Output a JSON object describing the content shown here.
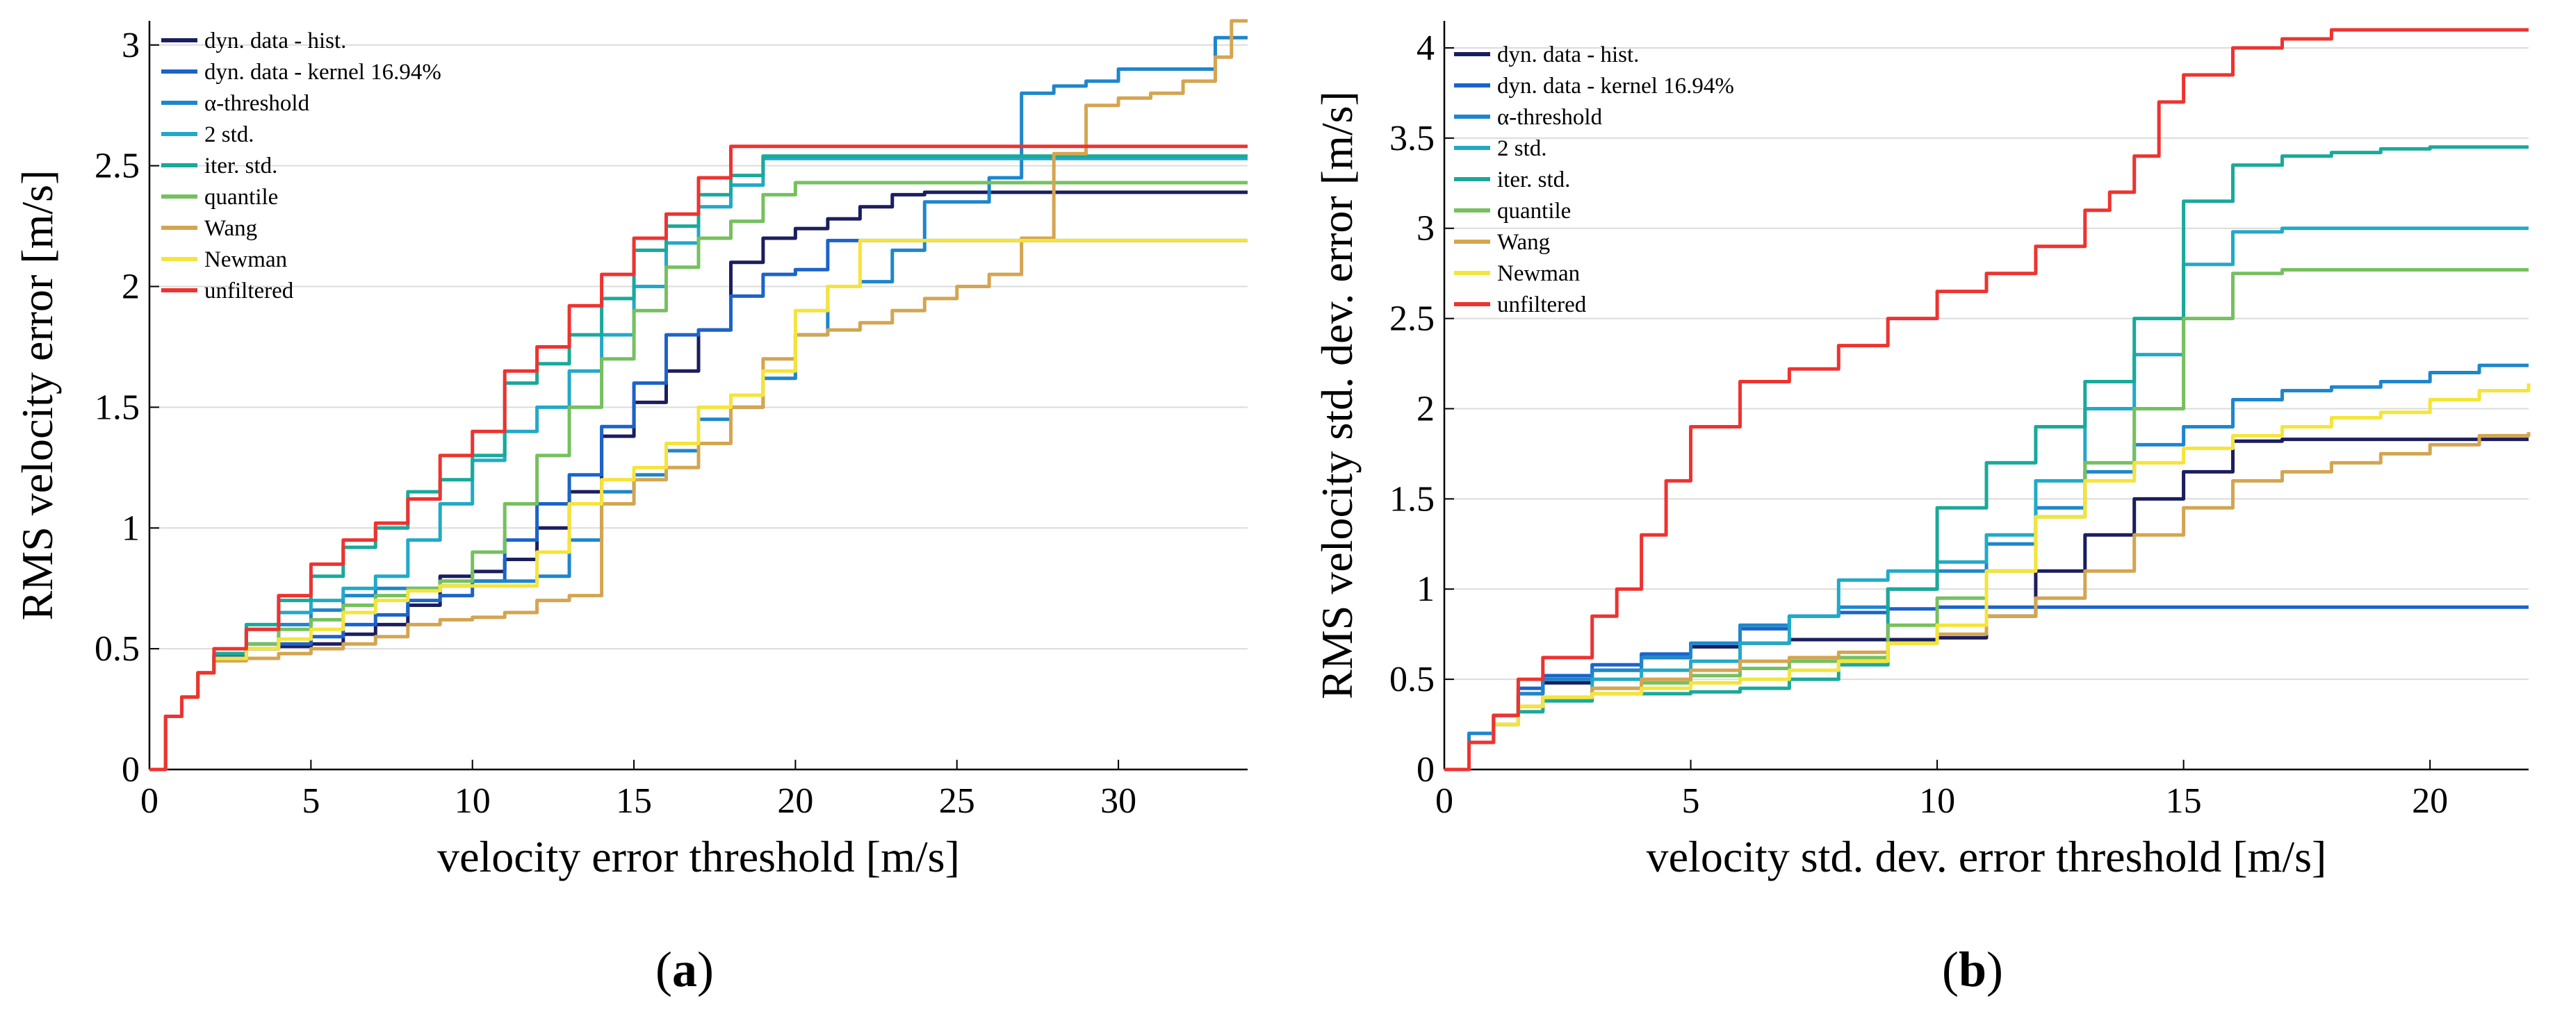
{
  "chart_data": [
    {
      "type": "line",
      "panel_label": "(a)",
      "panel_letter": "a",
      "xlabel": "velocity error threshold [m/s]",
      "ylabel": "RMS velocity error [m/s]",
      "xlim": [
        0,
        34
      ],
      "ylim": [
        0,
        3.1
      ],
      "xticks": [
        0,
        5,
        10,
        15,
        20,
        25,
        30
      ],
      "yticks": [
        0,
        0.5,
        1,
        1.5,
        2,
        2.5,
        3
      ],
      "grid": "horizontal",
      "legend_position": "top-left",
      "series": [
        {
          "name": "dyn. data - hist.",
          "color": "#1b1e5e",
          "x": [
            0,
            0.5,
            1,
            1.5,
            2,
            3,
            4,
            5,
            6,
            7,
            8,
            9,
            10,
            11,
            12,
            13,
            14,
            15,
            16,
            17,
            18,
            19,
            20,
            21,
            22,
            23,
            24,
            25,
            34
          ],
          "y": [
            0,
            0.22,
            0.3,
            0.4,
            0.47,
            0.5,
            0.51,
            0.52,
            0.56,
            0.6,
            0.68,
            0.8,
            0.82,
            0.87,
            1.0,
            1.15,
            1.38,
            1.52,
            1.65,
            1.82,
            2.1,
            2.2,
            2.24,
            2.28,
            2.33,
            2.38,
            2.39,
            2.39,
            2.39
          ]
        },
        {
          "name": "dyn. data - kernel 16.94%",
          "color": "#1c63c9",
          "x": [
            0,
            0.5,
            1,
            1.5,
            2,
            3,
            4,
            5,
            6,
            7,
            8,
            9,
            10,
            11,
            12,
            13,
            14,
            15,
            16,
            17,
            18,
            19,
            20,
            21,
            22,
            34
          ],
          "y": [
            0,
            0.22,
            0.3,
            0.4,
            0.47,
            0.5,
            0.52,
            0.55,
            0.6,
            0.64,
            0.7,
            0.72,
            0.78,
            0.95,
            1.1,
            1.22,
            1.42,
            1.6,
            1.8,
            1.82,
            1.96,
            2.05,
            2.07,
            2.19,
            2.19,
            2.19
          ]
        },
        {
          "name": "α-threshold",
          "color": "#1e86cc",
          "x": [
            0,
            0.5,
            1,
            1.5,
            2,
            3,
            4,
            5,
            6,
            7,
            8,
            9,
            10,
            11,
            12,
            13,
            14,
            15,
            16,
            17,
            18,
            19,
            20,
            21,
            22,
            23,
            24,
            25,
            26,
            27,
            28,
            29,
            30,
            31,
            32,
            33,
            34
          ],
          "y": [
            0,
            0.22,
            0.3,
            0.4,
            0.46,
            0.52,
            0.6,
            0.66,
            0.72,
            0.75,
            0.75,
            0.76,
            0.78,
            0.78,
            0.8,
            0.95,
            1.15,
            1.22,
            1.32,
            1.45,
            1.5,
            1.62,
            1.8,
            2.0,
            2.02,
            2.15,
            2.35,
            2.35,
            2.45,
            2.8,
            2.83,
            2.85,
            2.9,
            2.9,
            2.9,
            3.03,
            3.03
          ]
        },
        {
          "name": "2 std.",
          "color": "#22a9c8",
          "x": [
            0,
            0.5,
            1,
            1.5,
            2,
            3,
            4,
            5,
            6,
            7,
            8,
            9,
            10,
            11,
            12,
            13,
            14,
            15,
            16,
            17,
            18,
            19,
            34
          ],
          "y": [
            0,
            0.22,
            0.3,
            0.4,
            0.48,
            0.58,
            0.65,
            0.7,
            0.75,
            0.8,
            0.95,
            1.1,
            1.28,
            1.4,
            1.5,
            1.65,
            1.8,
            2.0,
            2.18,
            2.33,
            2.42,
            2.53,
            2.53
          ]
        },
        {
          "name": "iter. std.",
          "color": "#1aa99a",
          "x": [
            0,
            0.5,
            1,
            1.5,
            2,
            3,
            4,
            5,
            6,
            7,
            8,
            9,
            10,
            11,
            12,
            13,
            14,
            15,
            16,
            17,
            18,
            19,
            34
          ],
          "y": [
            0,
            0.22,
            0.3,
            0.4,
            0.48,
            0.6,
            0.7,
            0.8,
            0.92,
            1.0,
            1.15,
            1.2,
            1.3,
            1.6,
            1.68,
            1.8,
            1.95,
            2.15,
            2.25,
            2.38,
            2.46,
            2.54,
            2.54
          ]
        },
        {
          "name": "quantile",
          "color": "#76c05f",
          "x": [
            0,
            0.5,
            1,
            1.5,
            2,
            3,
            4,
            5,
            6,
            7,
            8,
            9,
            10,
            11,
            12,
            13,
            14,
            15,
            16,
            17,
            18,
            19,
            20,
            34
          ],
          "y": [
            0,
            0.22,
            0.3,
            0.4,
            0.46,
            0.52,
            0.58,
            0.62,
            0.68,
            0.72,
            0.75,
            0.78,
            0.9,
            1.1,
            1.3,
            1.5,
            1.7,
            1.9,
            2.08,
            2.2,
            2.27,
            2.38,
            2.43,
            2.43
          ]
        },
        {
          "name": "Wang",
          "color": "#d4a550",
          "x": [
            0,
            0.5,
            1,
            1.5,
            2,
            3,
            4,
            5,
            6,
            7,
            8,
            9,
            10,
            11,
            12,
            13,
            14,
            15,
            16,
            17,
            18,
            19,
            20,
            21,
            22,
            23,
            24,
            25,
            26,
            27,
            28,
            29,
            30,
            31,
            32,
            33,
            33.5,
            34
          ],
          "y": [
            0,
            0.22,
            0.3,
            0.4,
            0.45,
            0.46,
            0.48,
            0.5,
            0.52,
            0.55,
            0.6,
            0.62,
            0.63,
            0.65,
            0.7,
            0.72,
            1.1,
            1.2,
            1.25,
            1.35,
            1.5,
            1.7,
            1.8,
            1.82,
            1.85,
            1.9,
            1.95,
            2.0,
            2.05,
            2.2,
            2.55,
            2.75,
            2.78,
            2.8,
            2.85,
            2.95,
            3.1,
            3.1
          ]
        },
        {
          "name": "Newman",
          "color": "#f5e43a",
          "x": [
            0,
            0.5,
            1,
            1.5,
            2,
            3,
            4,
            5,
            6,
            7,
            8,
            9,
            10,
            11,
            12,
            13,
            14,
            15,
            16,
            17,
            18,
            19,
            20,
            21,
            22,
            34
          ],
          "y": [
            0,
            0.22,
            0.3,
            0.4,
            0.46,
            0.5,
            0.54,
            0.58,
            0.65,
            0.7,
            0.74,
            0.76,
            0.76,
            0.76,
            0.9,
            1.1,
            1.2,
            1.25,
            1.35,
            1.5,
            1.55,
            1.65,
            1.9,
            2.0,
            2.19,
            2.19
          ]
        },
        {
          "name": "unfiltered",
          "color": "#ee3330",
          "x": [
            0,
            0.5,
            1,
            1.5,
            2,
            3,
            4,
            5,
            6,
            7,
            8,
            9,
            10,
            11,
            12,
            13,
            14,
            15,
            16,
            17,
            18,
            34
          ],
          "y": [
            0,
            0.22,
            0.3,
            0.4,
            0.5,
            0.58,
            0.72,
            0.85,
            0.95,
            1.02,
            1.12,
            1.3,
            1.4,
            1.65,
            1.75,
            1.92,
            2.05,
            2.2,
            2.3,
            2.45,
            2.58,
            2.58
          ]
        }
      ]
    },
    {
      "type": "line",
      "panel_label": "(b)",
      "panel_letter": "b",
      "xlabel": "velocity std. dev. error threshold [m/s]",
      "ylabel": "RMS velocity std. dev. error [m/s]",
      "xlim": [
        0,
        22
      ],
      "ylim": [
        0,
        4.15
      ],
      "xticks": [
        0,
        5,
        10,
        15,
        20
      ],
      "yticks": [
        0,
        0.5,
        1,
        1.5,
        2,
        2.5,
        3,
        3.5,
        4
      ],
      "grid": "horizontal",
      "legend_position": "top-left",
      "series": [
        {
          "name": "dyn. data - hist.",
          "color": "#1b1e5e",
          "x": [
            0,
            0.5,
            1,
            1.5,
            2,
            3,
            4,
            5,
            6,
            7,
            8,
            9,
            10,
            11,
            12,
            13,
            14,
            15,
            16,
            17,
            18,
            19,
            20,
            21,
            22
          ],
          "y": [
            0,
            0.15,
            0.3,
            0.42,
            0.48,
            0.55,
            0.62,
            0.68,
            0.7,
            0.72,
            0.72,
            0.72,
            0.73,
            0.85,
            1.1,
            1.3,
            1.5,
            1.65,
            1.82,
            1.83,
            1.83,
            1.83,
            1.83,
            1.83,
            1.83
          ]
        },
        {
          "name": "dyn. data - kernel 16.94%",
          "color": "#1c63c9",
          "x": [
            0,
            0.5,
            1,
            1.5,
            2,
            3,
            4,
            5,
            6,
            7,
            8,
            9,
            10,
            11,
            12,
            13,
            14,
            15,
            16,
            17,
            18,
            19,
            20,
            21,
            22
          ],
          "y": [
            0,
            0.2,
            0.3,
            0.45,
            0.52,
            0.58,
            0.64,
            0.7,
            0.78,
            0.85,
            0.87,
            0.89,
            0.9,
            0.9,
            0.9,
            0.9,
            0.9,
            0.9,
            0.9,
            0.9,
            0.9,
            0.9,
            0.9,
            0.9,
            0.9
          ]
        },
        {
          "name": "α-threshold",
          "color": "#1e86cc",
          "x": [
            0,
            0.5,
            1,
            1.5,
            2,
            3,
            4,
            5,
            6,
            7,
            8,
            9,
            10,
            11,
            12,
            13,
            14,
            15,
            16,
            17,
            18,
            19,
            20,
            21,
            22
          ],
          "y": [
            0,
            0.2,
            0.3,
            0.42,
            0.5,
            0.55,
            0.62,
            0.7,
            0.8,
            0.85,
            0.9,
            1.0,
            1.1,
            1.25,
            1.45,
            1.65,
            1.8,
            1.9,
            2.05,
            2.1,
            2.12,
            2.15,
            2.2,
            2.24,
            2.24
          ]
        },
        {
          "name": "2 std.",
          "color": "#22a9c8",
          "x": [
            0,
            0.5,
            1,
            1.5,
            2,
            3,
            4,
            5,
            6,
            7,
            8,
            9,
            10,
            11,
            12,
            13,
            14,
            15,
            16,
            17,
            18,
            19,
            20,
            21,
            22
          ],
          "y": [
            0,
            0.15,
            0.25,
            0.35,
            0.4,
            0.5,
            0.55,
            0.6,
            0.7,
            0.85,
            1.05,
            1.1,
            1.15,
            1.3,
            1.6,
            2.0,
            2.3,
            2.8,
            2.98,
            3.0,
            3.0,
            3.0,
            3.0,
            3.0,
            3.0
          ]
        },
        {
          "name": "iter. std.",
          "color": "#1aa99a",
          "x": [
            0,
            0.5,
            1,
            1.5,
            2,
            3,
            4,
            5,
            6,
            7,
            8,
            9,
            10,
            11,
            12,
            13,
            14,
            15,
            16,
            17,
            18,
            19,
            20,
            21,
            22
          ],
          "y": [
            0,
            0.15,
            0.25,
            0.32,
            0.38,
            0.42,
            0.42,
            0.43,
            0.45,
            0.5,
            0.58,
            1.0,
            1.45,
            1.7,
            1.9,
            2.15,
            2.5,
            3.15,
            3.35,
            3.4,
            3.42,
            3.44,
            3.45,
            3.45,
            3.45
          ]
        },
        {
          "name": "quantile",
          "color": "#76c05f",
          "x": [
            0,
            0.5,
            1,
            1.5,
            2,
            3,
            4,
            5,
            6,
            7,
            8,
            9,
            10,
            11,
            12,
            13,
            14,
            15,
            16,
            17,
            18,
            19,
            20,
            21,
            22
          ],
          "y": [
            0,
            0.15,
            0.25,
            0.35,
            0.4,
            0.45,
            0.48,
            0.52,
            0.56,
            0.6,
            0.62,
            0.8,
            0.95,
            1.1,
            1.4,
            1.7,
            2.0,
            2.5,
            2.75,
            2.77,
            2.77,
            2.77,
            2.77,
            2.77,
            2.77
          ]
        },
        {
          "name": "Wang",
          "color": "#d4a550",
          "x": [
            0,
            0.5,
            1,
            1.5,
            2,
            3,
            4,
            5,
            6,
            7,
            8,
            9,
            10,
            11,
            12,
            13,
            14,
            15,
            16,
            17,
            18,
            19,
            20,
            21,
            22
          ],
          "y": [
            0,
            0.15,
            0.25,
            0.35,
            0.4,
            0.45,
            0.5,
            0.55,
            0.6,
            0.62,
            0.65,
            0.7,
            0.75,
            0.85,
            0.95,
            1.1,
            1.3,
            1.45,
            1.6,
            1.65,
            1.7,
            1.75,
            1.8,
            1.85,
            1.87
          ]
        },
        {
          "name": "Newman",
          "color": "#f5e43a",
          "x": [
            0,
            0.5,
            1,
            1.5,
            2,
            3,
            4,
            5,
            6,
            7,
            8,
            9,
            10,
            11,
            12,
            13,
            14,
            15,
            16,
            17,
            18,
            19,
            20,
            21,
            22
          ],
          "y": [
            0,
            0.15,
            0.25,
            0.35,
            0.4,
            0.42,
            0.45,
            0.48,
            0.5,
            0.55,
            0.6,
            0.7,
            0.8,
            1.1,
            1.4,
            1.6,
            1.7,
            1.78,
            1.85,
            1.9,
            1.95,
            1.98,
            2.05,
            2.1,
            2.14
          ]
        },
        {
          "name": "unfiltered",
          "color": "#ee3330",
          "x": [
            0,
            0.5,
            1,
            1.5,
            2,
            3,
            3.5,
            4,
            4.5,
            5,
            6,
            7,
            8,
            9,
            10,
            11,
            12,
            13,
            13.5,
            14,
            14.5,
            15,
            16,
            17,
            18,
            19,
            20,
            21,
            22
          ],
          "y": [
            0,
            0.15,
            0.3,
            0.5,
            0.62,
            0.85,
            1.0,
            1.3,
            1.6,
            1.9,
            2.15,
            2.22,
            2.35,
            2.5,
            2.65,
            2.75,
            2.9,
            3.1,
            3.2,
            3.4,
            3.7,
            3.85,
            4.0,
            4.05,
            4.1,
            4.1,
            4.1,
            4.1,
            4.1
          ]
        }
      ]
    }
  ]
}
